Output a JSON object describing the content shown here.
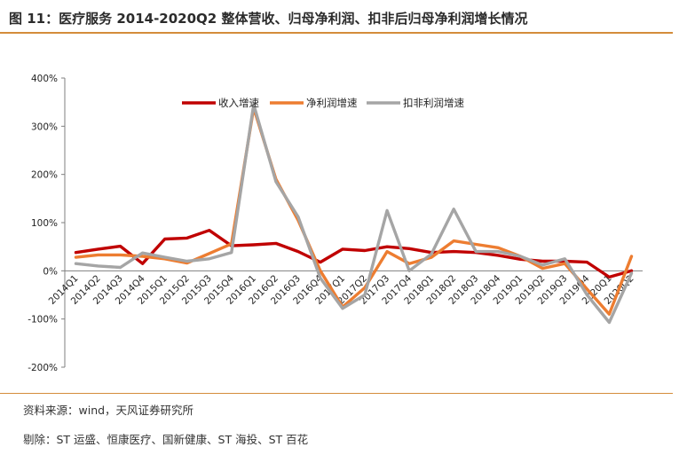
{
  "header": {
    "title": "图 11：医疗服务 2014-2020Q2 整体营收、归母净利润、扣非后归母净利润增长情况"
  },
  "footer": {
    "source": "资料来源：wind，天风证券研究所",
    "exclusion": "剔除：ST 运盛、恒康医疗、国新健康、ST 海投、ST 百花"
  },
  "chart_data": {
    "type": "line",
    "title": "",
    "xlabel": "",
    "ylabel": "",
    "ylim": [
      -200,
      400
    ],
    "yticks": [
      "400%",
      "300%",
      "200%",
      "100%",
      "0%",
      "-100%",
      "-200%"
    ],
    "grid": false,
    "legend_position": "top",
    "categories": [
      "2014Q1",
      "2014Q2",
      "2014Q3",
      "2014Q4",
      "2015Q1",
      "2015Q2",
      "2015Q3",
      "2015Q4",
      "2016Q1",
      "2016Q2",
      "2016Q3",
      "2016Q4",
      "2017Q1",
      "2017Q2",
      "2017Q3",
      "2017Q4",
      "2018Q1",
      "2018Q2",
      "2018Q3",
      "2018Q4",
      "2019Q1",
      "2019Q2",
      "2019Q3",
      "2019Q4",
      "2020Q1",
      "2020Q2"
    ],
    "series": [
      {
        "name": "收入增速",
        "color": "#c00000",
        "values": [
          38,
          45,
          51,
          15,
          66,
          68,
          84,
          52,
          54,
          57,
          40,
          18,
          45,
          42,
          50,
          46,
          38,
          40,
          38,
          32,
          24,
          20,
          20,
          18,
          -13,
          0
        ]
      },
      {
        "name": "净利润增速",
        "color": "#ed7d31",
        "values": [
          28,
          33,
          33,
          30,
          25,
          16,
          36,
          56,
          338,
          190,
          105,
          0,
          -75,
          -35,
          40,
          15,
          28,
          62,
          55,
          48,
          30,
          5,
          15,
          -38,
          -90,
          30
        ]
      },
      {
        "name": "扣非利润增速",
        "color": "#a5a5a5",
        "values": [
          15,
          10,
          7,
          37,
          28,
          20,
          25,
          38,
          345,
          185,
          112,
          -15,
          -78,
          -50,
          125,
          0,
          35,
          128,
          40,
          40,
          30,
          12,
          25,
          -50,
          -107,
          -5
        ]
      }
    ]
  }
}
